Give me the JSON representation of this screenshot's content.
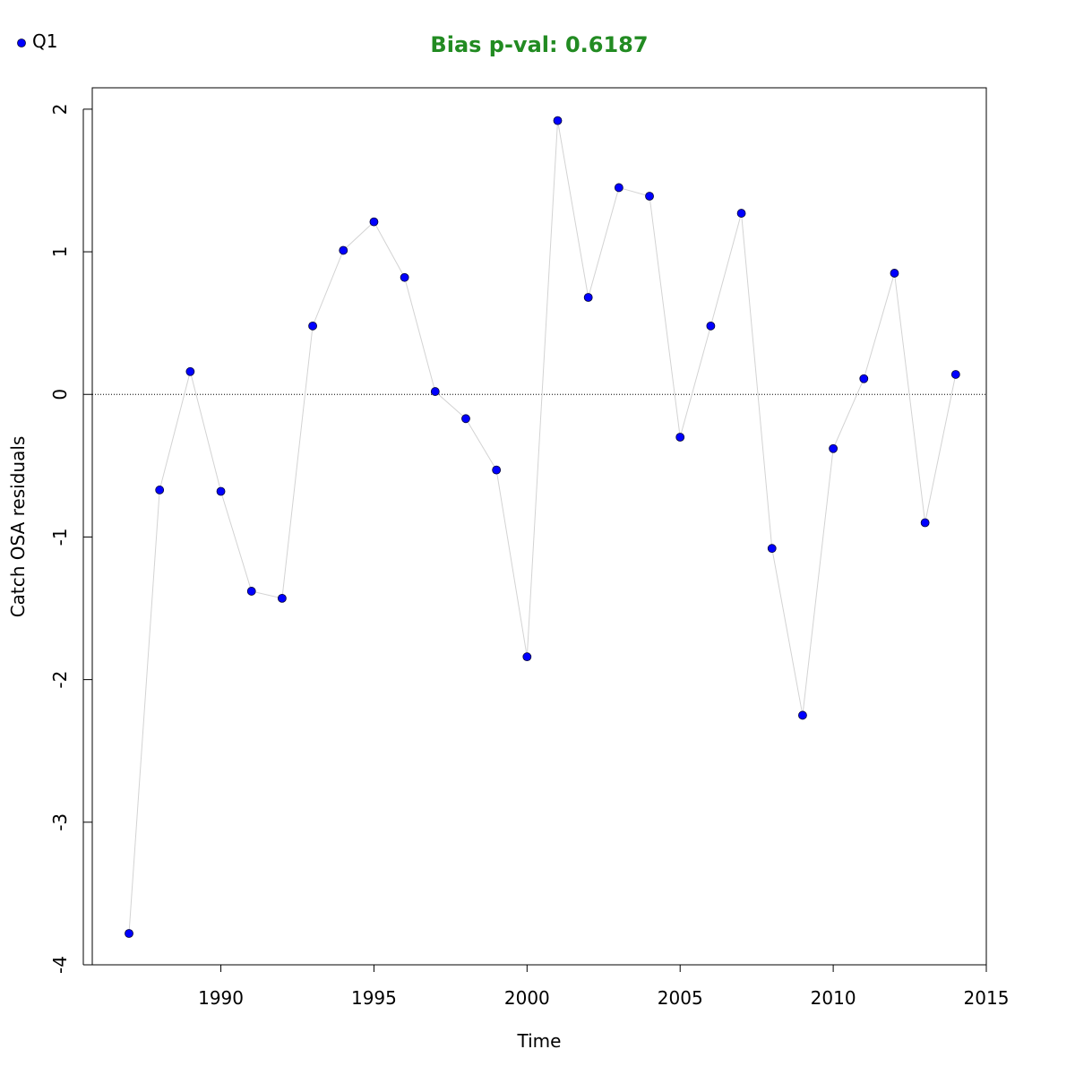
{
  "chart_data": {
    "type": "scatter",
    "title": "Bias p-val: 0.6187",
    "xlabel": "Time",
    "ylabel": "Catch OSA residuals",
    "xlim": [
      1985.8,
      2015
    ],
    "ylim": [
      -4.0,
      2.15
    ],
    "x_ticks": [
      1990,
      1995,
      2000,
      2005,
      2010,
      2015
    ],
    "x_tick_labels": [
      "1990",
      "1995",
      "2000",
      "2005",
      "2010",
      "2015"
    ],
    "y_ticks": [
      -4,
      -3,
      -2,
      -1,
      0,
      1,
      2
    ],
    "y_tick_labels": [
      "-4",
      "-3",
      "-2",
      "-1",
      "0",
      "1",
      "2"
    ],
    "reference_line_y": 0,
    "grid": false,
    "legend_position": "top-left",
    "series": [
      {
        "name": "Q1",
        "x": [
          1987,
          1988,
          1989,
          1990,
          1991,
          1992,
          1993,
          1994,
          1995,
          1996,
          1997,
          1998,
          1999,
          2000,
          2001,
          2002,
          2003,
          2004,
          2005,
          2006,
          2007,
          2008,
          2009,
          2010,
          2011,
          2012,
          2013,
          2014
        ],
        "values": [
          -3.78,
          -0.67,
          0.16,
          -0.68,
          -1.38,
          -1.43,
          0.48,
          1.01,
          1.21,
          0.82,
          0.02,
          -0.17,
          -0.53,
          -1.84,
          1.92,
          0.68,
          1.45,
          1.39,
          -0.3,
          0.48,
          1.27,
          -1.08,
          -2.25,
          -0.38,
          0.11,
          0.85,
          -0.9,
          0.14
        ]
      }
    ],
    "colors": {
      "title": "#228B22",
      "point_fill": "#0000FF",
      "point_stroke": "#000033",
      "connector_line": "#d3d3d3",
      "reference_line": "#000000",
      "axis": "#000000"
    }
  }
}
